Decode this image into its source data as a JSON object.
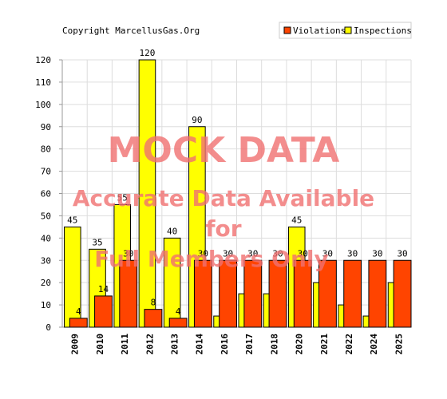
{
  "copyright": "Copyright MarcellusGas.Org",
  "watermark": {
    "line1": "MOCK DATA",
    "line2": "Accurate Data Available",
    "line3": "for",
    "line4": "Full Members Only"
  },
  "colors": {
    "violations": "#ff4400",
    "inspections": "#ffff00",
    "border": "#000000",
    "grid": "#dddddd"
  },
  "chart_data": {
    "type": "bar",
    "title": "",
    "xlabel": "",
    "ylabel": "",
    "ylim": [
      0,
      120
    ],
    "yticks": [
      0,
      10,
      20,
      30,
      40,
      50,
      60,
      70,
      80,
      90,
      100,
      110,
      120
    ],
    "grid": true,
    "legend_position": "top-right",
    "categories": [
      "2009",
      "2010",
      "2011",
      "2012",
      "2013",
      "2014",
      "2016",
      "2017",
      "2018",
      "2020",
      "2021",
      "2022",
      "2024",
      "2025"
    ],
    "series": [
      {
        "name": "Violations",
        "values": [
          4,
          14,
          30,
          8,
          4,
          30,
          30,
          30,
          30,
          30,
          30,
          30,
          30,
          30
        ]
      },
      {
        "name": "Inspections",
        "values": [
          45,
          35,
          55,
          120,
          40,
          90,
          5,
          15,
          15,
          45,
          20,
          10,
          5,
          20
        ]
      }
    ],
    "data_labels": {
      "Violations": [
        "4",
        "14",
        "30",
        "8",
        "4",
        "30",
        "30",
        "30",
        "30",
        "30",
        "30",
        "30",
        "30",
        "30"
      ],
      "Inspections": [
        "45",
        "35",
        "55",
        "120",
        "40",
        "90",
        "",
        "",
        "",
        "45",
        "",
        "",
        "",
        ""
      ]
    }
  }
}
